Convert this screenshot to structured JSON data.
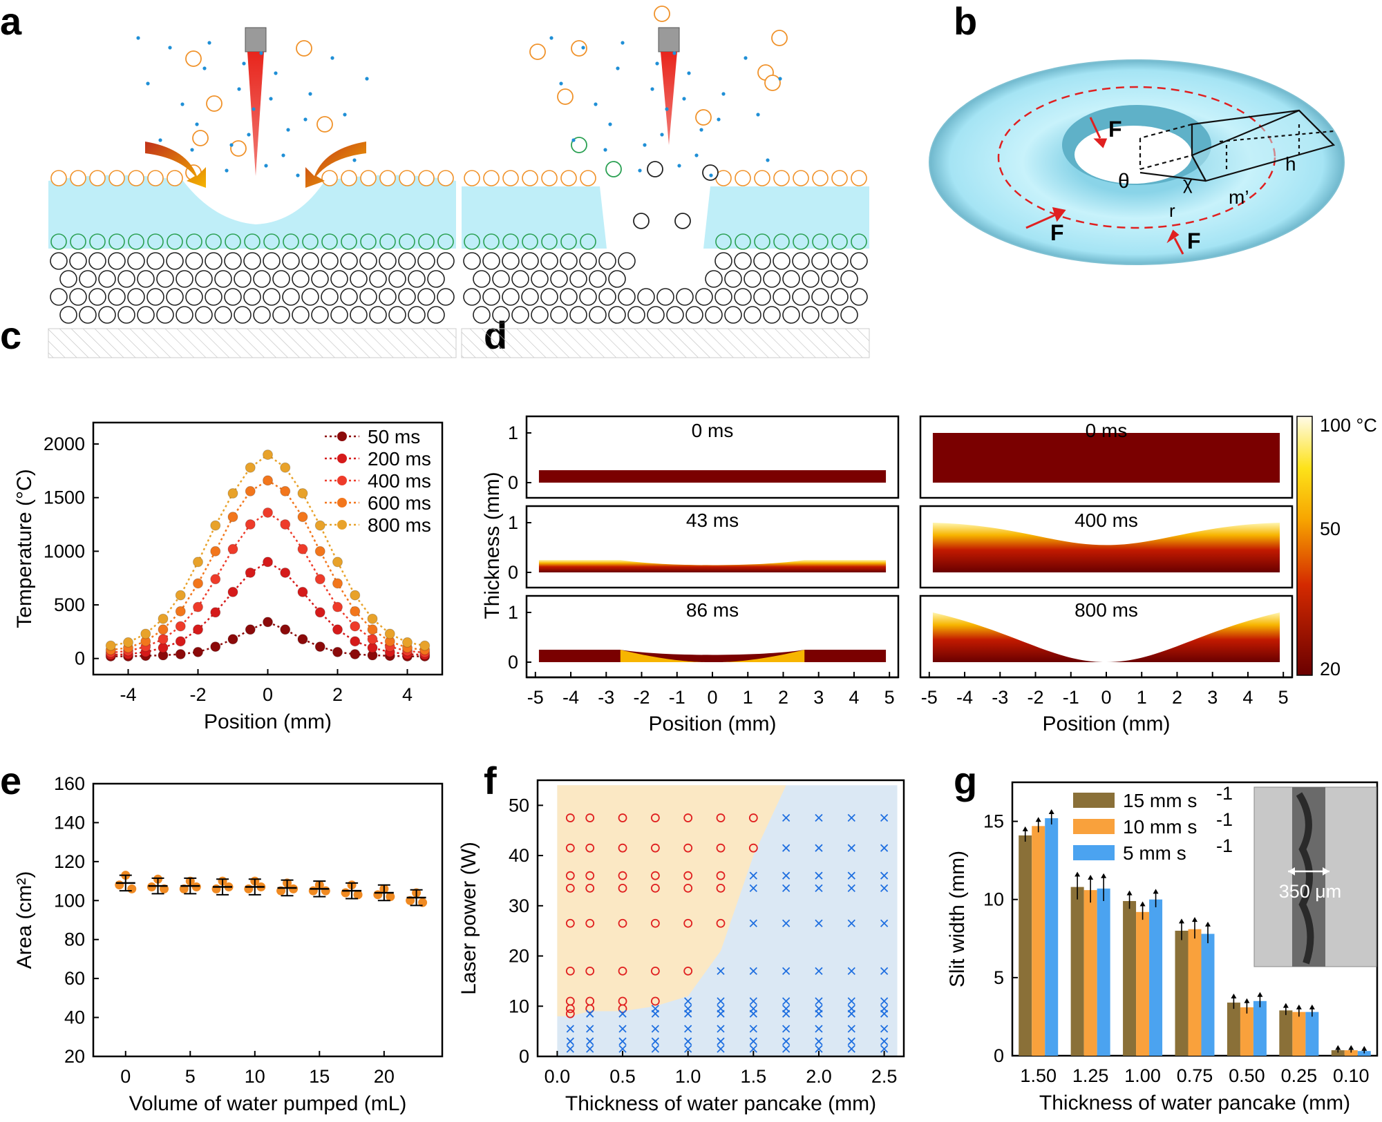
{
  "panel_labels": {
    "a": "a",
    "b": "b",
    "c": "c",
    "d": "d",
    "e": "e",
    "f": "f",
    "g": "g"
  },
  "panel_b": {
    "force_label": "F",
    "theta": "θ",
    "chi": "χ",
    "r": "r",
    "m": "m’",
    "h": "h"
  },
  "colors": {
    "water": "#bfeef8",
    "orange": "#f0922a",
    "green": "#2aa052",
    "blue_dot": "#1f8fd6",
    "laser": "#e8251c",
    "dashed_ring": "#e02020"
  },
  "chart_data": [
    {
      "id": "c",
      "type": "line",
      "xlabel": "Position (mm)",
      "ylabel": "Temperature (°C)",
      "xlim": [
        -5,
        5
      ],
      "ylim": [
        -150,
        2200
      ],
      "xticks": [
        "-4",
        "-2",
        "0",
        "2",
        "4"
      ],
      "yticks": [
        "0",
        "500",
        "1000",
        "1500",
        "2000"
      ],
      "x": [
        -4.5,
        -4,
        -3.5,
        -3,
        -2.5,
        -2,
        -1.5,
        -1,
        -0.5,
        0,
        0.5,
        1,
        1.5,
        2,
        2.5,
        3,
        3.5,
        4,
        4.5
      ],
      "series": [
        {
          "name": "50 ms",
          "color": "#8b0a0a",
          "values": [
            20,
            20,
            25,
            30,
            40,
            60,
            110,
            180,
            270,
            340,
            270,
            180,
            110,
            60,
            40,
            30,
            25,
            20,
            20
          ]
        },
        {
          "name": "200 ms",
          "color": "#d51a1a",
          "values": [
            35,
            40,
            60,
            100,
            160,
            270,
            430,
            620,
            800,
            900,
            800,
            620,
            430,
            270,
            160,
            100,
            60,
            40,
            35
          ]
        },
        {
          "name": "400 ms",
          "color": "#ee3b2a",
          "values": [
            55,
            70,
            110,
            180,
            300,
            480,
            740,
            1020,
            1250,
            1360,
            1250,
            1020,
            740,
            480,
            300,
            180,
            110,
            70,
            55
          ]
        },
        {
          "name": "600 ms",
          "color": "#f2761c",
          "values": [
            80,
            100,
            160,
            270,
            440,
            700,
            1000,
            1320,
            1560,
            1660,
            1560,
            1320,
            1000,
            700,
            440,
            270,
            160,
            100,
            80
          ]
        },
        {
          "name": "800 ms",
          "color": "#e8a22a",
          "values": [
            120,
            150,
            230,
            370,
            590,
            900,
            1240,
            1540,
            1780,
            1900,
            1780,
            1540,
            1240,
            900,
            590,
            370,
            230,
            150,
            120
          ]
        }
      ]
    },
    {
      "id": "d",
      "type": "heatmap",
      "xlabel": "Position (mm)",
      "ylabel": "Thickness (mm)",
      "xticks": [
        "-5",
        "-4",
        "-3",
        "-2",
        "-1",
        "0",
        "1",
        "2",
        "3",
        "4",
        "5"
      ],
      "yticks": [
        "0",
        "1"
      ],
      "colorbar": {
        "min_label": "20",
        "mid_label": "50",
        "max_label": "100 °C"
      },
      "left_column_times": [
        "0 ms",
        "43 ms",
        "86 ms"
      ],
      "right_column_times": [
        "0 ms",
        "400 ms",
        "800 ms"
      ]
    },
    {
      "id": "e",
      "type": "scatter",
      "xlabel": "Volume of water pumped (mL)",
      "ylabel": "Area (cm²)",
      "xlim": [
        -2.5,
        24.5
      ],
      "ylim": [
        20,
        160
      ],
      "xticks": [
        "0",
        "5",
        "10",
        "15",
        "20"
      ],
      "yticks": [
        "20",
        "40",
        "60",
        "80",
        "100",
        "120",
        "140",
        "160"
      ],
      "x": [
        0,
        2.5,
        5,
        7.5,
        10,
        12.5,
        15,
        17.5,
        20,
        22.5
      ],
      "mean": [
        109,
        107.5,
        107.5,
        107,
        107,
        106.5,
        106,
        105,
        104,
        101.5
      ],
      "err": [
        4,
        4,
        4,
        4,
        4,
        4,
        4,
        4,
        4,
        4
      ],
      "points": [
        [
          108,
          113,
          106
        ],
        [
          107,
          111,
          106
        ],
        [
          106,
          110,
          107
        ],
        [
          106,
          110,
          107
        ],
        [
          106,
          110,
          107
        ],
        [
          105,
          109,
          106
        ],
        [
          105,
          108,
          105
        ],
        [
          104,
          108,
          103
        ],
        [
          103,
          106,
          102
        ],
        [
          100,
          104,
          99
        ]
      ]
    },
    {
      "id": "f",
      "type": "scatter",
      "xlabel": "Thickness of water pancake (mm)",
      "ylabel": "Laser power (W)",
      "xlim": [
        -0.15,
        2.65
      ],
      "ylim": [
        0,
        55
      ],
      "xticks": [
        "0.0",
        "0.5",
        "1.0",
        "1.5",
        "2.0",
        "2.5"
      ],
      "yticks": [
        "0",
        "10",
        "20",
        "30",
        "40",
        "50"
      ],
      "thickness": [
        0.1,
        0.25,
        0.5,
        0.75,
        1.0,
        1.25,
        1.5,
        1.75,
        2.0,
        2.25,
        2.5
      ],
      "powers": [
        47.5,
        41.5,
        36,
        33.5,
        26.5,
        17,
        11,
        9.5,
        8.5,
        5.5,
        3,
        1.5
      ],
      "boundary_power_by_thickness": [
        8,
        9,
        9,
        10,
        12,
        21,
        40,
        54,
        54,
        54,
        54
      ],
      "legend_symbols": {
        "success": "o",
        "failure": "x"
      },
      "region_colors": {
        "success": "#fbe8c4",
        "failure": "#dbe8f4"
      }
    },
    {
      "id": "g",
      "type": "bar",
      "xlabel": "Thickness of water pancake (mm)",
      "ylabel": "Slit width (mm)",
      "ylim": [
        0,
        17.5
      ],
      "yticks": [
        "0",
        "5",
        "10",
        "15"
      ],
      "categories": [
        "1.50",
        "1.25",
        "1.00",
        "0.75",
        "0.50",
        "0.25",
        "0.10"
      ],
      "series": [
        {
          "name": "15 mm s",
          "sup": "-1",
          "color": "#8a7038",
          "values": [
            14.1,
            10.8,
            9.9,
            8.0,
            3.4,
            2.9,
            0.35
          ]
        },
        {
          "name": "10 mm s",
          "sup": "-1",
          "color": "#f9a13c",
          "values": [
            14.7,
            10.6,
            9.2,
            8.1,
            3.1,
            2.8,
            0.35
          ]
        },
        {
          "name": "5 mm s",
          "sup": "-1",
          "color": "#4ba3f0",
          "values": [
            15.2,
            10.7,
            10.0,
            7.8,
            3.5,
            2.8,
            0.3
          ]
        }
      ],
      "err": [
        0.4,
        0.8,
        0.5,
        0.6,
        0.4,
        0.3,
        0.15
      ],
      "inset_label": "350 μm"
    }
  ]
}
